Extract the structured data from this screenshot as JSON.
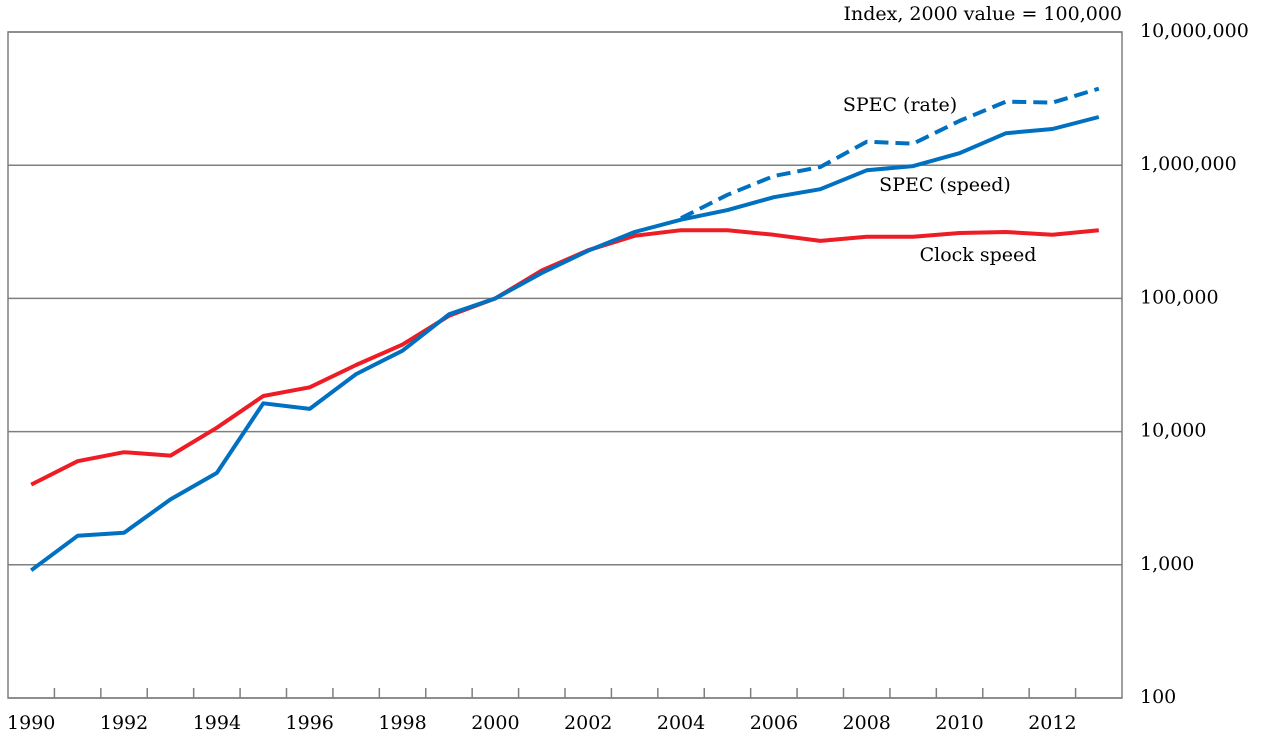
{
  "chart_data": {
    "type": "line",
    "annotation": "Index, 2000 value  = 100,000",
    "categories": [
      "1990",
      null,
      "1992",
      null,
      "1994",
      null,
      "1996",
      null,
      "1998",
      null,
      "2000",
      null,
      "2002",
      null,
      "2004",
      null,
      "2006",
      null,
      "2008",
      null,
      "2010",
      null,
      "2012",
      null
    ],
    "series": [
      {
        "name": "Clock speed",
        "color": "#ee1c25",
        "dashed": false,
        "values": [
          4000,
          6000,
          7000,
          6600,
          10700,
          18500,
          21500,
          31600,
          45000,
          74000,
          100000,
          162000,
          230000,
          295000,
          325000,
          325000,
          300000,
          270000,
          290000,
          290000,
          310000,
          315000,
          300000,
          325000
        ]
      },
      {
        "name": "SPEC (speed)",
        "color": "#0070c0",
        "dashed": false,
        "values": [
          910,
          1650,
          1740,
          3100,
          4900,
          16300,
          14800,
          27000,
          40500,
          76000,
          100000,
          155000,
          228000,
          315000,
          390000,
          460000,
          575000,
          660000,
          915000,
          985000,
          1230000,
          1740000,
          1870000,
          2300000
        ]
      },
      {
        "name": "SPEC (rate)",
        "color": "#0070c0",
        "dashed": true,
        "values": [
          null,
          null,
          null,
          null,
          null,
          null,
          null,
          null,
          null,
          null,
          null,
          null,
          null,
          null,
          400000,
          600000,
          830000,
          970000,
          1500000,
          1450000,
          2150000,
          3000000,
          2950000,
          3750000
        ]
      }
    ],
    "ylog": true,
    "ylim": [
      100,
      10000000
    ],
    "yticks": [
      100,
      {
        "value": 1000,
        "label": "1,000"
      },
      {
        "value": 10000,
        "label": "10,000"
      },
      {
        "value": 100000,
        "label": "100,000"
      },
      {
        "value": 1000000,
        "label": "1,000,000"
      },
      {
        "value": 10000000,
        "label": "10,000,000"
      }
    ],
    "grid": true
  }
}
